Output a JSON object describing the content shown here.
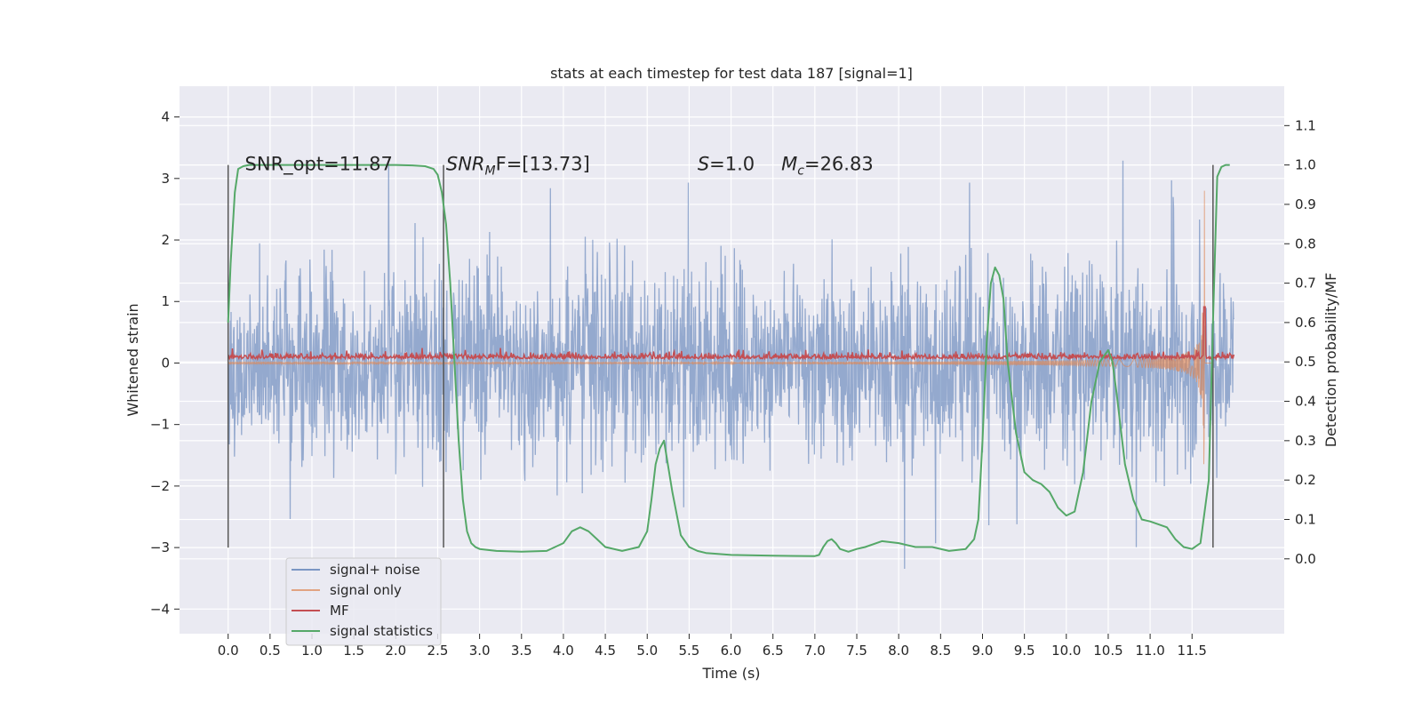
{
  "chart_data": {
    "type": "line",
    "title": "stats at each timestep for test data 187 [signal=1]",
    "xlabel": "Time (s)",
    "ylabel": "Whitened strain",
    "y2label": "Detection probability/MF",
    "xlim": [
      -0.58,
      12.6
    ],
    "ylim": [
      -4.4,
      4.5
    ],
    "y2lim": [
      -0.19,
      1.2
    ],
    "xticks": [
      "0.0",
      "0.5",
      "1.0",
      "1.5",
      "2.0",
      "2.5",
      "3.0",
      "3.5",
      "4.0",
      "4.5",
      "5.0",
      "5.5",
      "6.0",
      "6.5",
      "7.0",
      "7.5",
      "8.0",
      "8.5",
      "9.0",
      "9.5",
      "10.0",
      "10.5",
      "11.0",
      "11.5"
    ],
    "yticks": [
      "4",
      "3",
      "2",
      "1",
      "0",
      "−1",
      "−2",
      "−3",
      "−4"
    ],
    "y2ticks": [
      "1.1",
      "1.0",
      "0.9",
      "0.8",
      "0.7",
      "0.6",
      "0.5",
      "0.4",
      "0.3",
      "0.2",
      "0.1",
      "0.0"
    ],
    "grid": true,
    "legend_position": "lower-left",
    "annotations": [
      {
        "text": "SNR_opt=11.87",
        "x": 0.2
      },
      {
        "text": "SNR",
        "sub": "M",
        "tail": "F=[13.73]",
        "x": 2.6
      },
      {
        "text": "S",
        "tail": "=1.0",
        "x": 5.6
      },
      {
        "text": "M",
        "sub": "c",
        "tail": "=26.83",
        "x": 6.6
      }
    ],
    "vlines": [
      0.0,
      2.57,
      11.75
    ],
    "series": [
      {
        "name": "signal+ noise",
        "color": "#4c72b0",
        "axis": "left",
        "noise_amplitude": 2.0,
        "x_range": [
          0.0,
          12.0
        ]
      },
      {
        "name": "signal only",
        "color": "#dd8452",
        "axis": "left",
        "chirp_end": 11.65,
        "peak_amplitude": 2.9
      },
      {
        "name": "MF",
        "color": "#c44e52",
        "axis": "right",
        "baseline": 0.5,
        "spike": {
          "x": 11.65,
          "y": 0.64
        }
      },
      {
        "name": "signal statistics",
        "color": "#55a868",
        "axis": "right",
        "x": [
          0.0,
          0.03,
          0.08,
          0.12,
          0.18,
          0.25,
          0.4,
          0.7,
          1.0,
          1.5,
          2.0,
          2.2,
          2.35,
          2.45,
          2.5,
          2.55,
          2.6,
          2.65,
          2.7,
          2.75,
          2.8,
          2.85,
          2.9,
          2.95,
          3.0,
          3.2,
          3.5,
          3.8,
          4.0,
          4.1,
          4.2,
          4.3,
          4.4,
          4.5,
          4.7,
          4.9,
          5.0,
          5.05,
          5.1,
          5.15,
          5.2,
          5.3,
          5.4,
          5.5,
          5.6,
          5.7,
          6.0,
          6.5,
          7.0,
          7.05,
          7.1,
          7.15,
          7.2,
          7.25,
          7.3,
          7.4,
          7.5,
          7.6,
          7.8,
          8.0,
          8.2,
          8.4,
          8.6,
          8.8,
          8.9,
          8.95,
          9.0,
          9.05,
          9.1,
          9.15,
          9.2,
          9.25,
          9.3,
          9.4,
          9.5,
          9.6,
          9.7,
          9.8,
          9.9,
          10.0,
          10.1,
          10.2,
          10.3,
          10.4,
          10.5,
          10.55,
          10.6,
          10.7,
          10.8,
          10.9,
          11.0,
          11.2,
          11.3,
          11.4,
          11.5,
          11.6,
          11.7,
          11.75,
          11.8,
          11.85,
          11.9,
          11.95
        ],
        "y": [
          0.6,
          0.75,
          0.93,
          0.99,
          0.997,
          1.0,
          1.0,
          1.0,
          1.0,
          1.0,
          1.0,
          0.999,
          0.997,
          0.99,
          0.975,
          0.93,
          0.85,
          0.7,
          0.5,
          0.3,
          0.15,
          0.07,
          0.04,
          0.03,
          0.025,
          0.02,
          0.018,
          0.02,
          0.04,
          0.07,
          0.08,
          0.07,
          0.05,
          0.03,
          0.02,
          0.03,
          0.07,
          0.15,
          0.24,
          0.28,
          0.3,
          0.17,
          0.06,
          0.03,
          0.02,
          0.015,
          0.01,
          0.008,
          0.007,
          0.01,
          0.03,
          0.045,
          0.05,
          0.04,
          0.025,
          0.018,
          0.025,
          0.03,
          0.045,
          0.04,
          0.03,
          0.03,
          0.02,
          0.025,
          0.05,
          0.1,
          0.3,
          0.55,
          0.7,
          0.74,
          0.72,
          0.66,
          0.5,
          0.32,
          0.22,
          0.2,
          0.19,
          0.17,
          0.13,
          0.11,
          0.12,
          0.22,
          0.4,
          0.5,
          0.53,
          0.5,
          0.42,
          0.24,
          0.15,
          0.1,
          0.095,
          0.08,
          0.05,
          0.03,
          0.025,
          0.04,
          0.2,
          0.6,
          0.97,
          0.995,
          1.0,
          1.0
        ]
      }
    ]
  }
}
